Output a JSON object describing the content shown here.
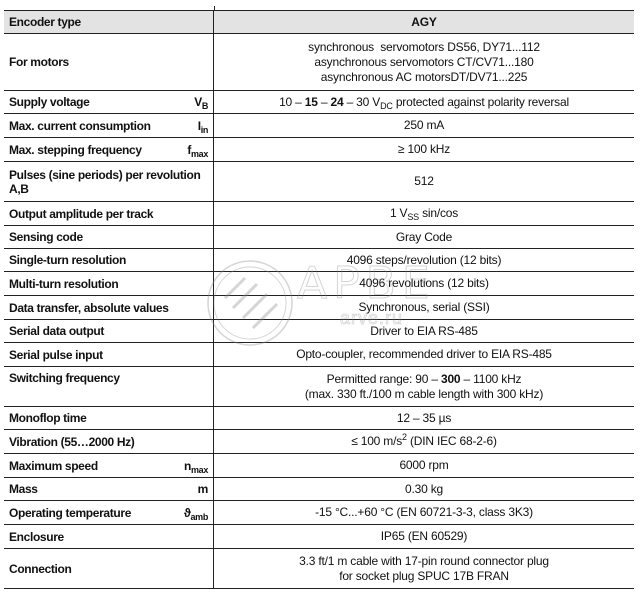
{
  "header": {
    "label": "Encoder type",
    "value": "AGY"
  },
  "rows": [
    {
      "label": "For motors",
      "lines": [
        [
          {
            "t": "synchronous  servomotors DS56, DY71...112"
          }
        ],
        [
          {
            "t": "asynchronous servomotors CT/CV71...180"
          }
        ],
        [
          {
            "t": "asynchronous AC motorsDT/DV71...225"
          }
        ]
      ]
    },
    {
      "label": "Supply voltage",
      "symbol": {
        "base": "V",
        "sub": "B"
      },
      "lines": [
        [
          {
            "t": "10 – "
          },
          {
            "t": "15",
            "s": "b"
          },
          {
            "t": " – "
          },
          {
            "t": "24",
            "s": "b"
          },
          {
            "t": " – 30 V"
          },
          {
            "t": "DC",
            "s": "sub"
          },
          {
            "t": " protected against polarity reversal"
          }
        ]
      ]
    },
    {
      "label": "Max. current consumption",
      "symbol": {
        "base": "I",
        "sub": "in"
      },
      "lines": [
        [
          {
            "t": "250 mA"
          }
        ]
      ]
    },
    {
      "label": "Max. stepping frequency",
      "symbol": {
        "base": "f",
        "sub": "max"
      },
      "lines": [
        [
          {
            "t": "≥ 100 kHz"
          }
        ]
      ]
    },
    {
      "label": "Pulses (sine periods) per revolution A,B",
      "lines": [
        [
          {
            "t": "512"
          }
        ]
      ]
    },
    {
      "label": "Output amplitude per track",
      "lines": [
        [
          {
            "t": "1 V"
          },
          {
            "t": "SS",
            "s": "sub"
          },
          {
            "t": " sin/cos"
          }
        ]
      ]
    },
    {
      "label": "Sensing code",
      "lines": [
        [
          {
            "t": "Gray Code"
          }
        ]
      ]
    },
    {
      "label": "Single-turn resolution",
      "lines": [
        [
          {
            "t": "4096 steps/revolution (12 bits)"
          }
        ]
      ]
    },
    {
      "label": "Multi-turn resolution",
      "lines": [
        [
          {
            "t": "4096 revolutions (12 bits)"
          }
        ]
      ]
    },
    {
      "label": "Data transfer, absolute values",
      "lines": [
        [
          {
            "t": "Synchronous, serial (SSI)"
          }
        ]
      ]
    },
    {
      "label": "Serial data output",
      "lines": [
        [
          {
            "t": "Driver to EIA RS-485"
          }
        ]
      ]
    },
    {
      "label": "Serial pulse input",
      "lines": [
        [
          {
            "t": "Opto-coupler, recommended driver to EIA RS-485"
          }
        ]
      ]
    },
    {
      "label": "Switching frequency",
      "align": "top",
      "lines": [
        [
          {
            "t": "Permitted range: 90 – "
          },
          {
            "t": "300",
            "s": "b"
          },
          {
            "t": " – 1100 kHz"
          }
        ],
        [
          {
            "t": "(max. 330 ft./100 m cable length with 300 kHz)"
          }
        ]
      ]
    },
    {
      "label": "Monoflop time",
      "lines": [
        [
          {
            "t": "12 – 35 µs"
          }
        ]
      ]
    },
    {
      "label": "Vibration (55…2000 Hz)",
      "lines": [
        [
          {
            "t": "≤ 100 m/s"
          },
          {
            "t": "2",
            "s": "sup"
          },
          {
            "t": " (DIN IEC 68-2-6)"
          }
        ]
      ]
    },
    {
      "label": "Maximum speed",
      "symbol": {
        "base": "n",
        "sub": "max"
      },
      "lines": [
        [
          {
            "t": "6000 rpm"
          }
        ]
      ]
    },
    {
      "label": "Mass",
      "symbol": {
        "base": "m"
      },
      "lines": [
        [
          {
            "t": "0.30 kg"
          }
        ]
      ]
    },
    {
      "label": "Operating temperature",
      "symbol": {
        "base": "ϑ",
        "sub": "amb"
      },
      "lines": [
        [
          {
            "t": "-15 °C...+60 °C (EN 60721-3-3, class 3K3)"
          }
        ]
      ]
    },
    {
      "label": "Enclosure",
      "lines": [
        [
          {
            "t": "IP65 (EN 60529)"
          }
        ]
      ]
    },
    {
      "label": "Connection",
      "lines": [
        [
          {
            "t": "3.3 ft/1 m cable with 17-pin round connector plug"
          }
        ],
        [
          {
            "t": "for socket plug SPUC 17B FRAN"
          }
        ]
      ]
    }
  ],
  "watermark": {
    "text": "APBE",
    "url": "arve.ru"
  }
}
